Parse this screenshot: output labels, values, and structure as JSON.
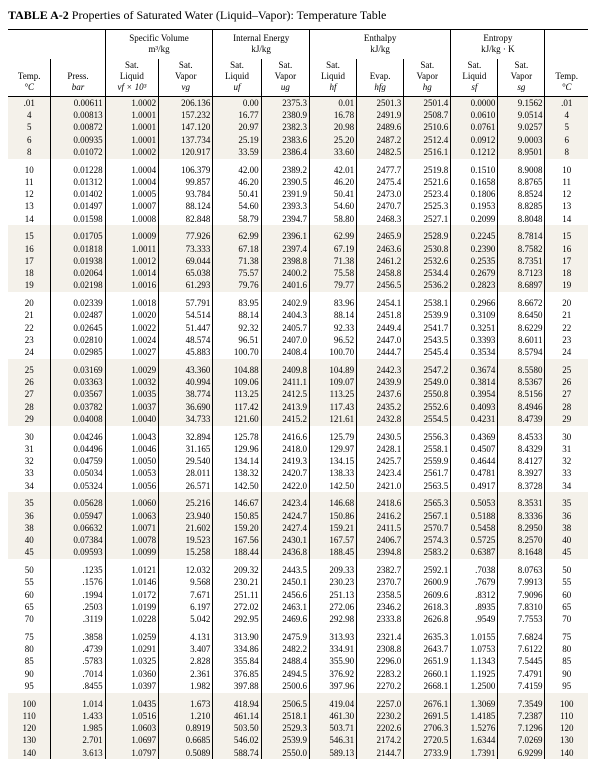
{
  "title_label": "TABLE A-2",
  "title_text": "Properties of Saturated Water (Liquid–Vapor): Temperature Table",
  "group_headers": {
    "left_blank": " ",
    "spec_vol": "Specific Volume",
    "spec_vol_unit": "m³/kg",
    "int_energy": "Internal Energy",
    "int_energy_unit": "kJ/kg",
    "enthalpy": "Enthalpy",
    "enthalpy_unit": "kJ/kg",
    "entropy": "Entropy",
    "entropy_unit": "kJ/kg · K",
    "right_blank": " "
  },
  "col_headers": [
    [
      "Temp.",
      "°C"
    ],
    [
      "Press.",
      "bar"
    ],
    [
      "Sat.",
      "Liquid",
      "vf × 10³"
    ],
    [
      "Sat.",
      "Vapor",
      "vg"
    ],
    [
      "Sat.",
      "Liquid",
      "uf"
    ],
    [
      "Sat.",
      "Vapor",
      "ug"
    ],
    [
      "Sat.",
      "Liquid",
      "hf"
    ],
    [
      "Evap.",
      "hfg"
    ],
    [
      "Sat.",
      "Vapor",
      "hg"
    ],
    [
      "Sat.",
      "Liquid",
      "sf"
    ],
    [
      "Sat.",
      "Vapor",
      "sg"
    ],
    [
      "Temp.",
      "°C"
    ]
  ],
  "sections": [
    {
      "tinted": true,
      "rows": [
        [
          ".01",
          "0.00611",
          "1.0002",
          "206.136",
          "0.00",
          "2375.3",
          "0.01",
          "2501.3",
          "2501.4",
          "0.0000",
          "9.1562",
          ".01"
        ],
        [
          "4",
          "0.00813",
          "1.0001",
          "157.232",
          "16.77",
          "2380.9",
          "16.78",
          "2491.9",
          "2508.7",
          "0.0610",
          "9.0514",
          "4"
        ],
        [
          "5",
          "0.00872",
          "1.0001",
          "147.120",
          "20.97",
          "2382.3",
          "20.98",
          "2489.6",
          "2510.6",
          "0.0761",
          "9.0257",
          "5"
        ],
        [
          "6",
          "0.00935",
          "1.0001",
          "137.734",
          "25.19",
          "2383.6",
          "25.20",
          "2487.2",
          "2512.4",
          "0.0912",
          "9.0003",
          "6"
        ],
        [
          "8",
          "0.01072",
          "1.0002",
          "120.917",
          "33.59",
          "2386.4",
          "33.60",
          "2482.5",
          "2516.1",
          "0.1212",
          "8.9501",
          "8"
        ]
      ]
    },
    {
      "tinted": false,
      "rows": [
        [
          "10",
          "0.01228",
          "1.0004",
          "106.379",
          "42.00",
          "2389.2",
          "42.01",
          "2477.7",
          "2519.8",
          "0.1510",
          "8.9008",
          "10"
        ],
        [
          "11",
          "0.01312",
          "1.0004",
          "99.857",
          "46.20",
          "2390.5",
          "46.20",
          "2475.4",
          "2521.6",
          "0.1658",
          "8.8765",
          "11"
        ],
        [
          "12",
          "0.01402",
          "1.0005",
          "93.784",
          "50.41",
          "2391.9",
          "50.41",
          "2473.0",
          "2523.4",
          "0.1806",
          "8.8524",
          "12"
        ],
        [
          "13",
          "0.01497",
          "1.0007",
          "88.124",
          "54.60",
          "2393.3",
          "54.60",
          "2470.7",
          "2525.3",
          "0.1953",
          "8.8285",
          "13"
        ],
        [
          "14",
          "0.01598",
          "1.0008",
          "82.848",
          "58.79",
          "2394.7",
          "58.80",
          "2468.3",
          "2527.1",
          "0.2099",
          "8.8048",
          "14"
        ]
      ]
    },
    {
      "tinted": true,
      "rows": [
        [
          "15",
          "0.01705",
          "1.0009",
          "77.926",
          "62.99",
          "2396.1",
          "62.99",
          "2465.9",
          "2528.9",
          "0.2245",
          "8.7814",
          "15"
        ],
        [
          "16",
          "0.01818",
          "1.0011",
          "73.333",
          "67.18",
          "2397.4",
          "67.19",
          "2463.6",
          "2530.8",
          "0.2390",
          "8.7582",
          "16"
        ],
        [
          "17",
          "0.01938",
          "1.0012",
          "69.044",
          "71.38",
          "2398.8",
          "71.38",
          "2461.2",
          "2532.6",
          "0.2535",
          "8.7351",
          "17"
        ],
        [
          "18",
          "0.02064",
          "1.0014",
          "65.038",
          "75.57",
          "2400.2",
          "75.58",
          "2458.8",
          "2534.4",
          "0.2679",
          "8.7123",
          "18"
        ],
        [
          "19",
          "0.02198",
          "1.0016",
          "61.293",
          "79.76",
          "2401.6",
          "79.77",
          "2456.5",
          "2536.2",
          "0.2823",
          "8.6897",
          "19"
        ]
      ]
    },
    {
      "tinted": false,
      "rows": [
        [
          "20",
          "0.02339",
          "1.0018",
          "57.791",
          "83.95",
          "2402.9",
          "83.96",
          "2454.1",
          "2538.1",
          "0.2966",
          "8.6672",
          "20"
        ],
        [
          "21",
          "0.02487",
          "1.0020",
          "54.514",
          "88.14",
          "2404.3",
          "88.14",
          "2451.8",
          "2539.9",
          "0.3109",
          "8.6450",
          "21"
        ],
        [
          "22",
          "0.02645",
          "1.0022",
          "51.447",
          "92.32",
          "2405.7",
          "92.33",
          "2449.4",
          "2541.7",
          "0.3251",
          "8.6229",
          "22"
        ],
        [
          "23",
          "0.02810",
          "1.0024",
          "48.574",
          "96.51",
          "2407.0",
          "96.52",
          "2447.0",
          "2543.5",
          "0.3393",
          "8.6011",
          "23"
        ],
        [
          "24",
          "0.02985",
          "1.0027",
          "45.883",
          "100.70",
          "2408.4",
          "100.70",
          "2444.7",
          "2545.4",
          "0.3534",
          "8.5794",
          "24"
        ]
      ]
    },
    {
      "tinted": true,
      "rows": [
        [
          "25",
          "0.03169",
          "1.0029",
          "43.360",
          "104.88",
          "2409.8",
          "104.89",
          "2442.3",
          "2547.2",
          "0.3674",
          "8.5580",
          "25"
        ],
        [
          "26",
          "0.03363",
          "1.0032",
          "40.994",
          "109.06",
          "2411.1",
          "109.07",
          "2439.9",
          "2549.0",
          "0.3814",
          "8.5367",
          "26"
        ],
        [
          "27",
          "0.03567",
          "1.0035",
          "38.774",
          "113.25",
          "2412.5",
          "113.25",
          "2437.6",
          "2550.8",
          "0.3954",
          "8.5156",
          "27"
        ],
        [
          "28",
          "0.03782",
          "1.0037",
          "36.690",
          "117.42",
          "2413.9",
          "117.43",
          "2435.2",
          "2552.6",
          "0.4093",
          "8.4946",
          "28"
        ],
        [
          "29",
          "0.04008",
          "1.0040",
          "34.733",
          "121.60",
          "2415.2",
          "121.61",
          "2432.8",
          "2554.5",
          "0.4231",
          "8.4739",
          "29"
        ]
      ]
    },
    {
      "tinted": false,
      "rows": [
        [
          "30",
          "0.04246",
          "1.0043",
          "32.894",
          "125.78",
          "2416.6",
          "125.79",
          "2430.5",
          "2556.3",
          "0.4369",
          "8.4533",
          "30"
        ],
        [
          "31",
          "0.04496",
          "1.0046",
          "31.165",
          "129.96",
          "2418.0",
          "129.97",
          "2428.1",
          "2558.1",
          "0.4507",
          "8.4329",
          "31"
        ],
        [
          "32",
          "0.04759",
          "1.0050",
          "29.540",
          "134.14",
          "2419.3",
          "134.15",
          "2425.7",
          "2559.9",
          "0.4644",
          "8.4127",
          "32"
        ],
        [
          "33",
          "0.05034",
          "1.0053",
          "28.011",
          "138.32",
          "2420.7",
          "138.33",
          "2423.4",
          "2561.7",
          "0.4781",
          "8.3927",
          "33"
        ],
        [
          "34",
          "0.05324",
          "1.0056",
          "26.571",
          "142.50",
          "2422.0",
          "142.50",
          "2421.0",
          "2563.5",
          "0.4917",
          "8.3728",
          "34"
        ]
      ]
    },
    {
      "tinted": true,
      "rows": [
        [
          "35",
          "0.05628",
          "1.0060",
          "25.216",
          "146.67",
          "2423.4",
          "146.68",
          "2418.6",
          "2565.3",
          "0.5053",
          "8.3531",
          "35"
        ],
        [
          "36",
          "0.05947",
          "1.0063",
          "23.940",
          "150.85",
          "2424.7",
          "150.86",
          "2416.2",
          "2567.1",
          "0.5188",
          "8.3336",
          "36"
        ],
        [
          "38",
          "0.06632",
          "1.0071",
          "21.602",
          "159.20",
          "2427.4",
          "159.21",
          "2411.5",
          "2570.7",
          "0.5458",
          "8.2950",
          "38"
        ],
        [
          "40",
          "0.07384",
          "1.0078",
          "19.523",
          "167.56",
          "2430.1",
          "167.57",
          "2406.7",
          "2574.3",
          "0.5725",
          "8.2570",
          "40"
        ],
        [
          "45",
          "0.09593",
          "1.0099",
          "15.258",
          "188.44",
          "2436.8",
          "188.45",
          "2394.8",
          "2583.2",
          "0.6387",
          "8.1648",
          "45"
        ]
      ]
    },
    {
      "tinted": false,
      "rows": [
        [
          "50",
          ".1235",
          "1.0121",
          "12.032",
          "209.32",
          "2443.5",
          "209.33",
          "2382.7",
          "2592.1",
          ".7038",
          "8.0763",
          "50"
        ],
        [
          "55",
          ".1576",
          "1.0146",
          "9.568",
          "230.21",
          "2450.1",
          "230.23",
          "2370.7",
          "2600.9",
          ".7679",
          "7.9913",
          "55"
        ],
        [
          "60",
          ".1994",
          "1.0172",
          "7.671",
          "251.11",
          "2456.6",
          "251.13",
          "2358.5",
          "2609.6",
          ".8312",
          "7.9096",
          "60"
        ],
        [
          "65",
          ".2503",
          "1.0199",
          "6.197",
          "272.02",
          "2463.1",
          "272.06",
          "2346.2",
          "2618.3",
          ".8935",
          "7.8310",
          "65"
        ],
        [
          "70",
          ".3119",
          "1.0228",
          "5.042",
          "292.95",
          "2469.6",
          "292.98",
          "2333.8",
          "2626.8",
          ".9549",
          "7.7553",
          "70"
        ]
      ]
    },
    {
      "tinted": false,
      "rows": [
        [
          "75",
          ".3858",
          "1.0259",
          "4.131",
          "313.90",
          "2475.9",
          "313.93",
          "2321.4",
          "2635.3",
          "1.0155",
          "7.6824",
          "75"
        ],
        [
          "80",
          ".4739",
          "1.0291",
          "3.407",
          "334.86",
          "2482.2",
          "334.91",
          "2308.8",
          "2643.7",
          "1.0753",
          "7.6122",
          "80"
        ],
        [
          "85",
          ".5783",
          "1.0325",
          "2.828",
          "355.84",
          "2488.4",
          "355.90",
          "2296.0",
          "2651.9",
          "1.1343",
          "7.5445",
          "85"
        ],
        [
          "90",
          ".7014",
          "1.0360",
          "2.361",
          "376.85",
          "2494.5",
          "376.92",
          "2283.2",
          "2660.1",
          "1.1925",
          "7.4791",
          "90"
        ],
        [
          "95",
          ".8455",
          "1.0397",
          "1.982",
          "397.88",
          "2500.6",
          "397.96",
          "2270.2",
          "2668.1",
          "1.2500",
          "7.4159",
          "95"
        ]
      ]
    },
    {
      "tinted": true,
      "rows": [
        [
          "100",
          "1.014",
          "1.0435",
          "1.673",
          "418.94",
          "2506.5",
          "419.04",
          "2257.0",
          "2676.1",
          "1.3069",
          "7.3549",
          "100"
        ],
        [
          "110",
          "1.433",
          "1.0516",
          "1.210",
          "461.14",
          "2518.1",
          "461.30",
          "2230.2",
          "2691.5",
          "1.4185",
          "7.2387",
          "110"
        ],
        [
          "120",
          "1.985",
          "1.0603",
          "0.8919",
          "503.50",
          "2529.3",
          "503.71",
          "2202.6",
          "2706.3",
          "1.5276",
          "7.1296",
          "120"
        ],
        [
          "130",
          "2.701",
          "1.0697",
          "0.6685",
          "546.02",
          "2539.9",
          "546.31",
          "2174.2",
          "2720.5",
          "1.6344",
          "7.0269",
          "130"
        ],
        [
          "140",
          "3.613",
          "1.0797",
          "0.5089",
          "588.74",
          "2550.0",
          "589.13",
          "2144.7",
          "2733.9",
          "1.7391",
          "6.9299",
          "140"
        ]
      ]
    }
  ]
}
